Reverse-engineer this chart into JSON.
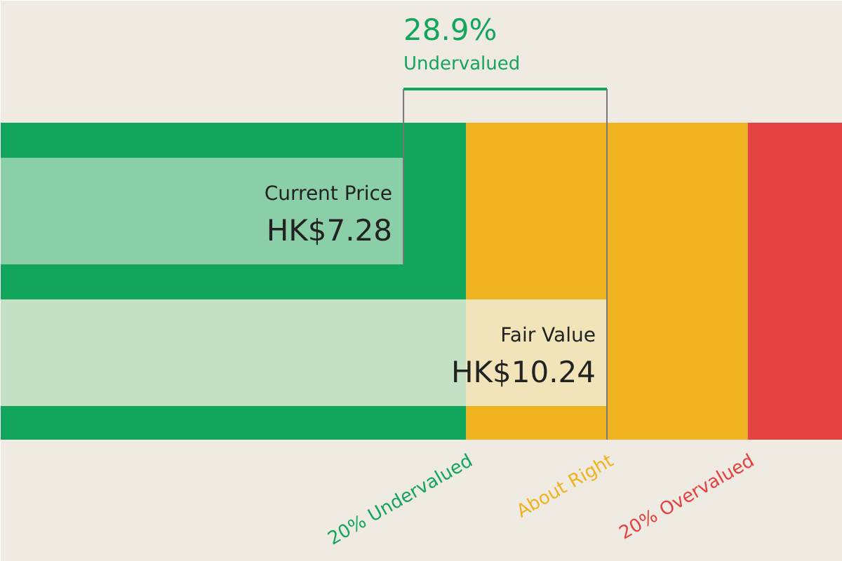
{
  "chart_data": {
    "type": "bar",
    "orientation": "horizontal",
    "categories": [
      "Current Price",
      "Fair Value"
    ],
    "values": [
      7.28,
      10.24
    ],
    "value_labels": [
      "HK$7.28",
      "HK$10.24"
    ],
    "colors": [
      "#a9d9bc",
      "#f3f0e0"
    ],
    "xlim": [
      1.42,
      13.67
    ],
    "tick_labels": false,
    "grid": false,
    "ref_lines": [
      {
        "axis": "x",
        "value": 10.24,
        "color": "#777777"
      }
    ],
    "bands": [
      {
        "axis": "x",
        "from": 0,
        "to": 8.192,
        "label": "20% Undervalued",
        "color": "#12a55c"
      },
      {
        "axis": "x",
        "from": 8.192,
        "to": 12.288,
        "label": "About Right",
        "color": "#eeb31e"
      },
      {
        "axis": "x",
        "from": 12.288,
        "to": 13.67,
        "label": "20% Overvalued",
        "color": "#e44141"
      }
    ],
    "annotations": [
      "28.9%",
      "Undervalued"
    ]
  }
}
